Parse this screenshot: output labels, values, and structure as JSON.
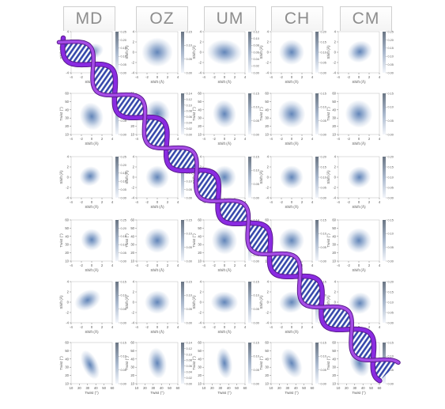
{
  "columns": [
    "MD",
    "OZ",
    "UM",
    "CH",
    "CM"
  ],
  "colors": {
    "density": "#5a7fb5",
    "colorbar_top": "#6b7684",
    "helix_backbone": "#8a2be2",
    "helix_bases": "#2b3fa8"
  },
  "chart_data": {
    "type": "heatmap",
    "rows": [
      {
        "xlabel": "Shift (Å)",
        "ylabel": "Shift (Å)",
        "xticks": [
          "-4",
          "-2",
          "0",
          "2",
          "4"
        ],
        "yticks": [
          "4",
          "2",
          "0",
          "-2",
          "-4"
        ]
      },
      {
        "xlabel": "Shift (Å)",
        "ylabel": "Twist (°)",
        "xticks": [
          "-4",
          "-2",
          "0",
          "2",
          "4"
        ],
        "yticks": [
          "60",
          "50",
          "40",
          "30",
          "20",
          "10"
        ]
      },
      {
        "xlabel": "Shift (Å)",
        "ylabel": "Shift (Å)",
        "xticks": [
          "-4",
          "-2",
          "0",
          "2",
          "4"
        ],
        "yticks": [
          "4",
          "2",
          "0",
          "-2",
          "-4"
        ]
      },
      {
        "xlabel": "Shift (Å)",
        "ylabel": "Twist (°)",
        "xticks": [
          "-4",
          "-2",
          "0",
          "2",
          "4"
        ],
        "yticks": [
          "60",
          "50",
          "40",
          "30",
          "20",
          "10"
        ]
      },
      {
        "xlabel": "Shift (Å)",
        "ylabel": "Shift (Å)",
        "xticks": [
          "-4",
          "-2",
          "0",
          "2",
          "4"
        ],
        "yticks": [
          "4",
          "2",
          "0",
          "-2",
          "-4"
        ]
      },
      {
        "xlabel": "Twist (°)",
        "ylabel": "Twist (°)",
        "xticks": [
          "10",
          "20",
          "30",
          "40",
          "50",
          "60"
        ],
        "yticks": [
          "60",
          "50",
          "40",
          "30",
          "20",
          "10"
        ]
      }
    ],
    "colorbar_ticks": [
      [
        [
          "0.25",
          "0.20",
          "0.15",
          "0.10",
          "0.05",
          "0.00"
        ],
        [
          "0.15",
          "0.10",
          "0.05",
          "0.00"
        ],
        [
          "0.12",
          "0.10",
          "0.08",
          "0.06",
          "0.04",
          "0.02",
          "0.00"
        ],
        [
          "0.20",
          "0.15",
          "0.10",
          "0.05",
          "0.00"
        ],
        [
          "0.25",
          "0.20",
          "0.15",
          "0.10",
          "0.05",
          "0.00"
        ]
      ],
      [
        [
          "0.15",
          "0.10",
          "0.05",
          "0.00"
        ],
        [
          "0.14",
          "0.12",
          "0.10",
          "0.08",
          "0.06",
          "0.04",
          "0.02",
          "0.00"
        ],
        [
          "0.15",
          "0.10",
          "0.05",
          "0.00"
        ],
        [
          "0.15",
          "0.10",
          "0.05",
          "0.00"
        ],
        [
          "0.15",
          "0.10",
          "0.05",
          "0.00"
        ]
      ],
      [
        [
          "0.25",
          "0.20",
          "0.15",
          "0.10",
          "0.05",
          "0.00"
        ],
        [
          "0.25",
          "0.20",
          "0.15",
          "0.10",
          "0.05",
          "0.00"
        ],
        [
          "0.15",
          "0.10",
          "0.05",
          "0.00"
        ],
        [
          "0.20",
          "0.15",
          "0.10",
          "0.05",
          "0.00"
        ],
        [
          "0.20",
          "0.15",
          "0.10",
          "0.05",
          "0.00"
        ]
      ],
      [
        [
          "0.25",
          "0.20",
          "0.15",
          "0.10",
          "0.05",
          "0.00"
        ],
        [
          "0.15",
          "0.10",
          "0.05",
          "0.00"
        ],
        [
          "0.14",
          "0.12",
          "0.10",
          "0.08",
          "0.06",
          "0.04",
          "0.02",
          "0.00"
        ],
        [
          "0.15",
          "0.10",
          "0.05",
          "0.00"
        ],
        [
          "0.15",
          "0.10",
          "0.05",
          "0.00"
        ]
      ],
      [
        [
          "0.15",
          "0.10",
          "0.05",
          "0.00"
        ],
        [
          "0.15",
          "0.10",
          "0.05",
          "0.00"
        ],
        [
          "0.15",
          "0.10",
          "0.05",
          "0.00"
        ],
        [
          "0.15",
          "0.10",
          "0.05",
          "0.00"
        ],
        [
          "0.20",
          "0.15",
          "0.10",
          "0.05",
          "0.00"
        ]
      ],
      [
        [
          "0.15",
          "0.10",
          "0.05",
          "0.00"
        ],
        [
          "0.14",
          "0.12",
          "0.10",
          "0.08",
          "0.06",
          "0.04",
          "0.02",
          "0.00"
        ],
        [
          "0.15",
          "0.10",
          "0.05",
          "0.00"
        ],
        [
          "0.15",
          "0.10",
          "0.05",
          "0.00"
        ],
        [
          "0.15",
          "0.10",
          "0.05",
          "0.00"
        ]
      ]
    ],
    "distributions": [
      [
        {
          "cx": 0.1,
          "cy": 0.1,
          "sx": 1.2,
          "sy": 0.8,
          "rho": -0.5
        },
        {
          "cx": 0,
          "cy": 0,
          "sx": 1.6,
          "sy": 1.5,
          "rho": 0
        },
        {
          "cx": 0,
          "cy": 0,
          "sx": 1.8,
          "sy": 1.3,
          "rho": 0.1
        },
        {
          "cx": 0,
          "cy": 0,
          "sx": 1.3,
          "sy": 1.3,
          "rho": -0.8
        },
        {
          "cx": 0.2,
          "cy": 0.1,
          "sx": 1.3,
          "sy": 1.1,
          "rho": -0.6
        }
      ],
      [
        {
          "cx": 0,
          "cy": 32,
          "sx": 1.2,
          "sy": 9,
          "rho": -0.4
        },
        {
          "cx": 0,
          "cy": 35,
          "sx": 1.3,
          "sy": 9,
          "rho": -0.2
        },
        {
          "cx": 0,
          "cy": 35,
          "sx": 1.2,
          "sy": 9,
          "rho": -0.2
        },
        {
          "cx": 0,
          "cy": 35,
          "sx": 1.4,
          "sy": 9,
          "rho": -0.7
        },
        {
          "cx": 0,
          "cy": 35,
          "sx": 1.4,
          "sy": 9,
          "rho": -0.6
        }
      ],
      [
        {
          "cx": -0.3,
          "cy": 0.2,
          "sx": 1.1,
          "sy": 1.0,
          "rho": -0.6
        },
        {
          "cx": 0,
          "cy": 0,
          "sx": 1.2,
          "sy": 1.2,
          "rho": -0.2
        },
        {
          "cx": 0,
          "cy": 0,
          "sx": 1.2,
          "sy": 1.2,
          "rho": 0.1
        },
        {
          "cx": 0,
          "cy": 0,
          "sx": 1.2,
          "sy": 1.2,
          "rho": -0.6
        },
        {
          "cx": 0.1,
          "cy": 0,
          "sx": 1.2,
          "sy": 1.1,
          "rho": -0.5
        }
      ],
      [
        {
          "cx": 0,
          "cy": 36,
          "sx": 1.1,
          "sy": 7,
          "rho": -0.3
        },
        {
          "cx": 0,
          "cy": 35,
          "sx": 1.3,
          "sy": 8,
          "rho": -0.2
        },
        {
          "cx": 0,
          "cy": 35,
          "sx": 1.3,
          "sy": 9,
          "rho": -0.2
        },
        {
          "cx": 0,
          "cy": 35,
          "sx": 1.3,
          "sy": 8,
          "rho": -0.3
        },
        {
          "cx": 0,
          "cy": 35,
          "sx": 1.3,
          "sy": 8,
          "rho": -0.4
        }
      ],
      [
        {
          "cx": -0.8,
          "cy": 0.4,
          "sx": 1.4,
          "sy": 1.0,
          "rho": -0.7
        },
        {
          "cx": 0,
          "cy": 0,
          "sx": 1.3,
          "sy": 1.2,
          "rho": -0.1
        },
        {
          "cx": 0,
          "cy": 0,
          "sx": 1.4,
          "sy": 1.1,
          "rho": 0.1
        },
        {
          "cx": 0,
          "cy": 0,
          "sx": 1.3,
          "sy": 1.1,
          "rho": -0.4
        },
        {
          "cx": 0.2,
          "cy": -0.2,
          "sx": 1.2,
          "sy": 1.1,
          "rho": -0.6
        }
      ],
      [
        {
          "cx": 33,
          "cy": 33,
          "sx": 5,
          "sy": 10,
          "rho": -0.6
        },
        {
          "cx": 35,
          "cy": 35,
          "sx": 6,
          "sy": 10,
          "rho": -0.2
        },
        {
          "cx": 35,
          "cy": 35,
          "sx": 5,
          "sy": 10,
          "rho": -0.2
        },
        {
          "cx": 35,
          "cy": 35,
          "sx": 6,
          "sy": 10,
          "rho": -0.6
        },
        {
          "cx": 36,
          "cy": 35,
          "sx": 6,
          "sy": 9,
          "rho": -0.5
        }
      ]
    ]
  }
}
